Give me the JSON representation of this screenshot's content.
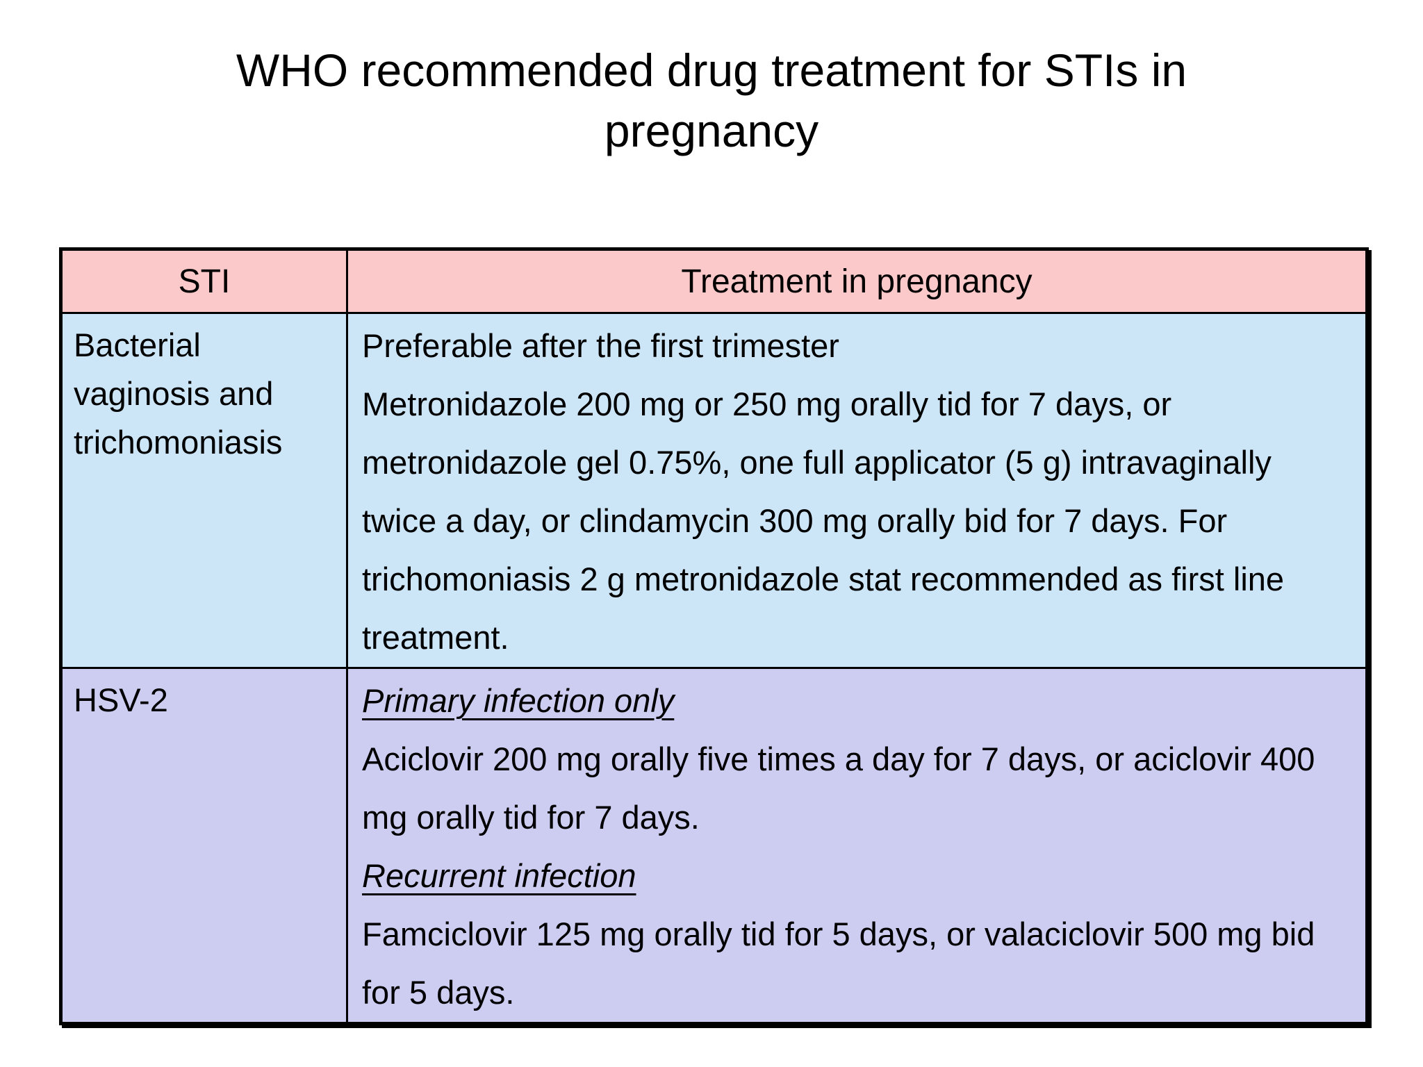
{
  "slide": {
    "title": "WHO recommended drug treatment for STIs in pregnancy"
  },
  "table": {
    "header": {
      "sti": "STI",
      "treatment": "Treatment in pregnancy"
    },
    "rows": [
      {
        "sti": "Bacterial vaginosis and trichomoniasis",
        "note": "Preferable after the first trimester",
        "detail": "Metronidazole 200 mg or 250 mg orally tid for 7 days, or metronidazole gel 0.75%, one full applicator (5 g) intravaginally twice a day, or clindamycin 300 mg orally bid for 7 days. For trichomoniasis 2 g metronidazole stat recommended as first line treatment."
      },
      {
        "sti": "HSV-2",
        "sections": [
          {
            "heading": "Primary infection only",
            "body": "Aciclovir 200 mg orally five times a day for 7 days, or aciclovir 400 mg orally tid for 7 days."
          },
          {
            "heading": "Recurrent infection",
            "body": "Famciclovir 125 mg orally tid for 5 days, or valaciclovir 500 mg bid for 5 days."
          }
        ]
      }
    ],
    "colors": {
      "header_bg": "#FBC9C9",
      "row1_bg": "#CDE6F7",
      "row2_bg": "#CDCCF1",
      "table_border": "#000000"
    }
  }
}
